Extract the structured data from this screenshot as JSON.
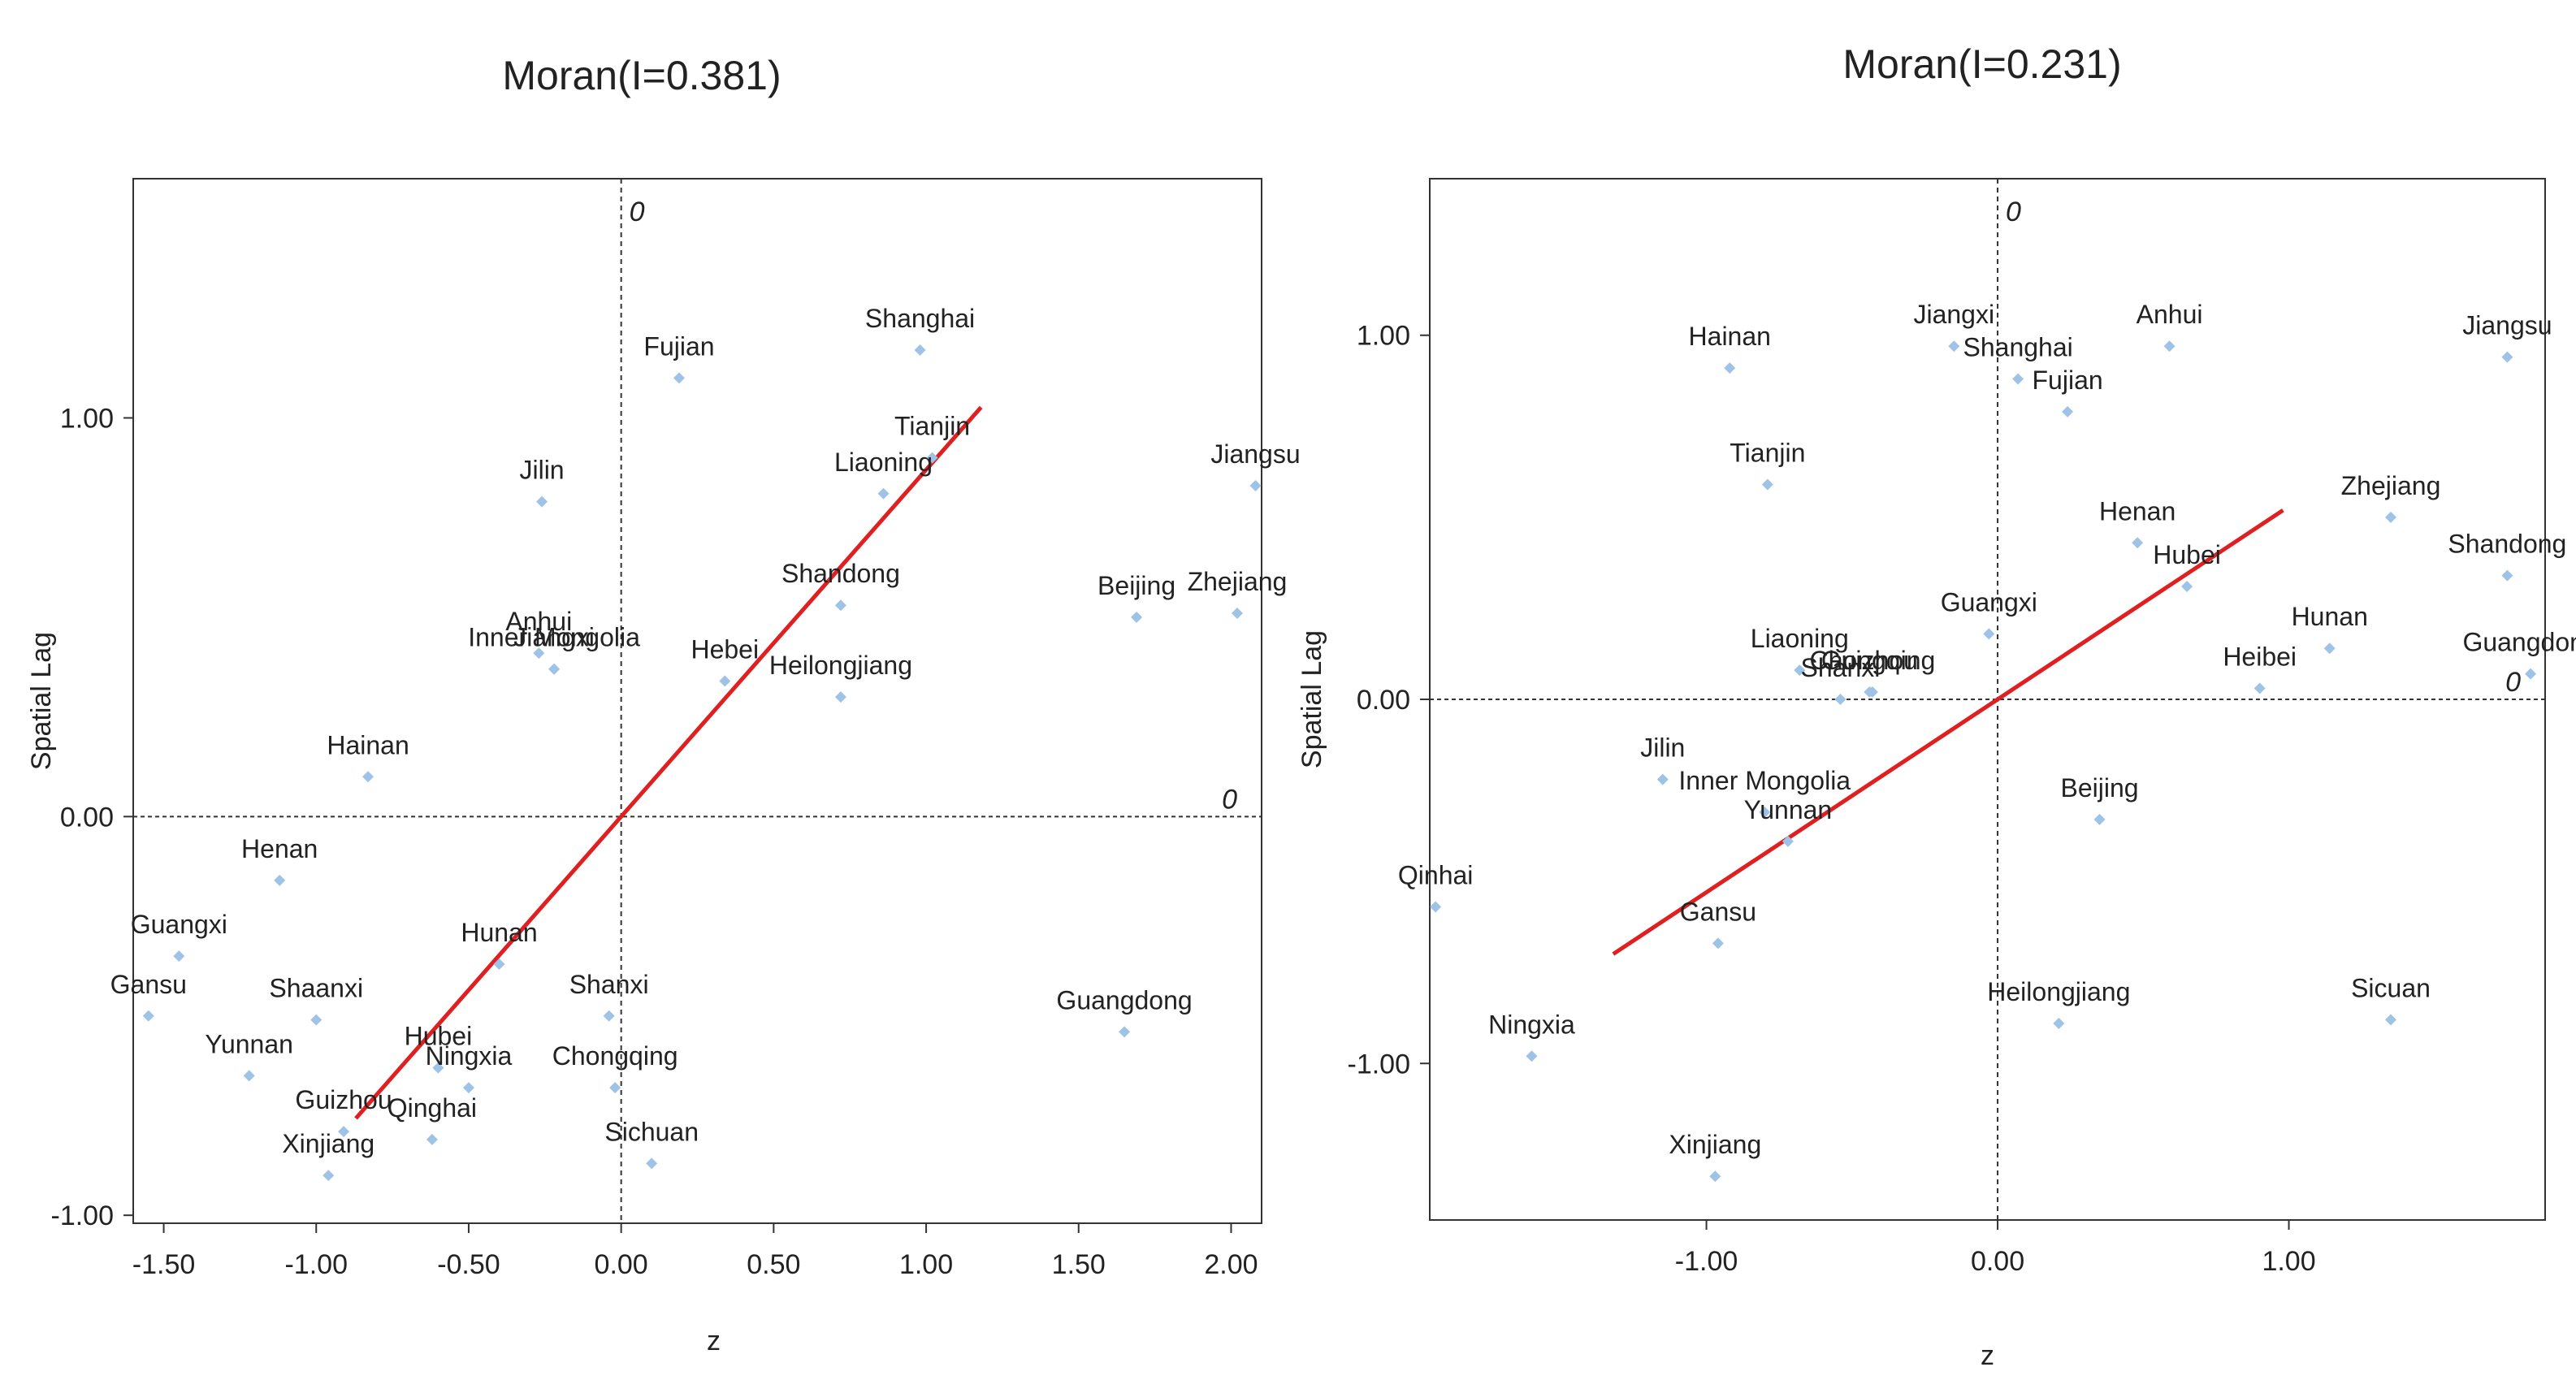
{
  "chart_data": [
    {
      "type": "scatter",
      "title": "Moran(I=0.381)",
      "xlabel": "z",
      "ylabel": "Spatial Lag",
      "xlim": [
        -1.6,
        2.1
      ],
      "ylim": [
        -1.02,
        1.6
      ],
      "xticks": [
        -1.5,
        -1.0,
        -0.5,
        0.0,
        0.5,
        1.0,
        1.5,
        2.0
      ],
      "xtick_labels": [
        "-1.50",
        "-1.00",
        "-0.50",
        "0.00",
        "0.50",
        "1.00",
        "1.50",
        "2.00"
      ],
      "yticks": [
        -1.0,
        0.0,
        1.0
      ],
      "ytick_labels": [
        "-1.00",
        "0.00",
        "1.00"
      ],
      "zero_labels": [
        "0",
        "0"
      ],
      "grid": false,
      "point_color": "#9fc3e6",
      "line_color": "#e02020",
      "regression": {
        "slope": 0.87,
        "x_range": [
          -0.87,
          1.18
        ]
      },
      "points": [
        {
          "name": "Shanghai",
          "x": 0.98,
          "y": 1.17
        },
        {
          "name": "Fujian",
          "x": 0.19,
          "y": 1.1
        },
        {
          "name": "Tianjin",
          "x": 1.02,
          "y": 0.9
        },
        {
          "name": "Liaoning",
          "x": 0.86,
          "y": 0.81
        },
        {
          "name": "Jiangsu",
          "x": 2.08,
          "y": 0.83
        },
        {
          "name": "Jilin",
          "x": -0.26,
          "y": 0.79
        },
        {
          "name": "Shandong",
          "x": 0.72,
          "y": 0.53
        },
        {
          "name": "Beijing",
          "x": 1.69,
          "y": 0.5
        },
        {
          "name": "Zhejiang",
          "x": 2.02,
          "y": 0.51
        },
        {
          "name": "Anhui",
          "x": -0.27,
          "y": 0.41
        },
        {
          "name": "Jiangxi",
          "x": -0.22,
          "y": 0.37
        },
        {
          "name": "Inner Mongolia",
          "x": -0.22,
          "y": 0.37
        },
        {
          "name": "Hebei",
          "x": 0.34,
          "y": 0.34
        },
        {
          "name": "Heilongjiang",
          "x": 0.72,
          "y": 0.3
        },
        {
          "name": "Hainan",
          "x": -0.83,
          "y": 0.1
        },
        {
          "name": "Henan",
          "x": -1.12,
          "y": -0.16
        },
        {
          "name": "Guangxi",
          "x": -1.45,
          "y": -0.35
        },
        {
          "name": "Gansu",
          "x": -1.55,
          "y": -0.5
        },
        {
          "name": "Hunan",
          "x": -0.4,
          "y": -0.37
        },
        {
          "name": "Shanxi",
          "x": -0.04,
          "y": -0.5
        },
        {
          "name": "Shaanxi",
          "x": -1.0,
          "y": -0.51
        },
        {
          "name": "Guangdong",
          "x": 1.65,
          "y": -0.54
        },
        {
          "name": "Hubei",
          "x": -0.6,
          "y": -0.63
        },
        {
          "name": "Ningxia",
          "x": -0.5,
          "y": -0.68
        },
        {
          "name": "Yunnan",
          "x": -1.22,
          "y": -0.65
        },
        {
          "name": "Chongqing",
          "x": -0.02,
          "y": -0.68
        },
        {
          "name": "Guizhou",
          "x": -0.91,
          "y": -0.79
        },
        {
          "name": "Qinghai",
          "x": -0.62,
          "y": -0.81
        },
        {
          "name": "Xinjiang",
          "x": -0.96,
          "y": -0.9
        },
        {
          "name": "Sichuan",
          "x": 0.1,
          "y": -0.87
        }
      ]
    },
    {
      "type": "scatter",
      "title": "Moran(I=0.231)",
      "xlabel": "z",
      "ylabel": "Spatial Lag",
      "xlim": [
        -1.95,
        1.88
      ],
      "ylim": [
        -1.43,
        1.43
      ],
      "xticks": [
        -1.0,
        0.0,
        1.0
      ],
      "xtick_labels": [
        "-1.00",
        "0.00",
        "1.00"
      ],
      "yticks": [
        -1.0,
        0.0,
        1.0
      ],
      "ytick_labels": [
        "-1.00",
        "0.00",
        "1.00"
      ],
      "zero_labels": [
        "0",
        "0"
      ],
      "grid": false,
      "point_color": "#9fc3e6",
      "line_color": "#e02020",
      "regression": {
        "slope": 0.53,
        "x_range": [
          -1.32,
          0.98
        ]
      },
      "points": [
        {
          "name": "Hainan",
          "x": -0.92,
          "y": 0.91
        },
        {
          "name": "Jiangxi",
          "x": -0.15,
          "y": 0.97
        },
        {
          "name": "Shanghai",
          "x": 0.07,
          "y": 0.88
        },
        {
          "name": "Anhui",
          "x": 0.59,
          "y": 0.97
        },
        {
          "name": "Fujian",
          "x": 0.24,
          "y": 0.79
        },
        {
          "name": "Jiangsu",
          "x": 1.75,
          "y": 0.94
        },
        {
          "name": "Tianjin",
          "x": -0.79,
          "y": 0.59
        },
        {
          "name": "Zhejiang",
          "x": 1.35,
          "y": 0.5
        },
        {
          "name": "Henan",
          "x": 0.48,
          "y": 0.43
        },
        {
          "name": "Hubei",
          "x": 0.65,
          "y": 0.31
        },
        {
          "name": "Shandong",
          "x": 1.75,
          "y": 0.34
        },
        {
          "name": "Chongqing",
          "x": -0.43,
          "y": 0.02
        },
        {
          "name": "Guangxi",
          "x": -0.03,
          "y": 0.18
        },
        {
          "name": "Liaoning",
          "x": -0.68,
          "y": 0.08
        },
        {
          "name": "Shanxi",
          "x": -0.54,
          "y": 0.0
        },
        {
          "name": "Guizhou",
          "x": -0.44,
          "y": 0.02
        },
        {
          "name": "Hunan",
          "x": 1.14,
          "y": 0.14
        },
        {
          "name": "Heibei",
          "x": 0.9,
          "y": 0.03
        },
        {
          "name": "Guangdong",
          "x": 1.83,
          "y": 0.07
        },
        {
          "name": "Jilin",
          "x": -1.15,
          "y": -0.22
        },
        {
          "name": "Inner Mongolia",
          "x": -0.8,
          "y": -0.31
        },
        {
          "name": "Yunnan",
          "x": -0.72,
          "y": -0.39
        },
        {
          "name": "Beijing",
          "x": 0.35,
          "y": -0.33
        },
        {
          "name": "Qinhai",
          "x": -1.93,
          "y": -0.57
        },
        {
          "name": "Gansu",
          "x": -0.96,
          "y": -0.67
        },
        {
          "name": "Heilongjiang",
          "x": 0.21,
          "y": -0.89
        },
        {
          "name": "Sicuan",
          "x": 1.35,
          "y": -0.88
        },
        {
          "name": "Ningxia",
          "x": -1.6,
          "y": -0.98
        },
        {
          "name": "Xinjiang",
          "x": -0.97,
          "y": -1.31
        }
      ]
    }
  ]
}
